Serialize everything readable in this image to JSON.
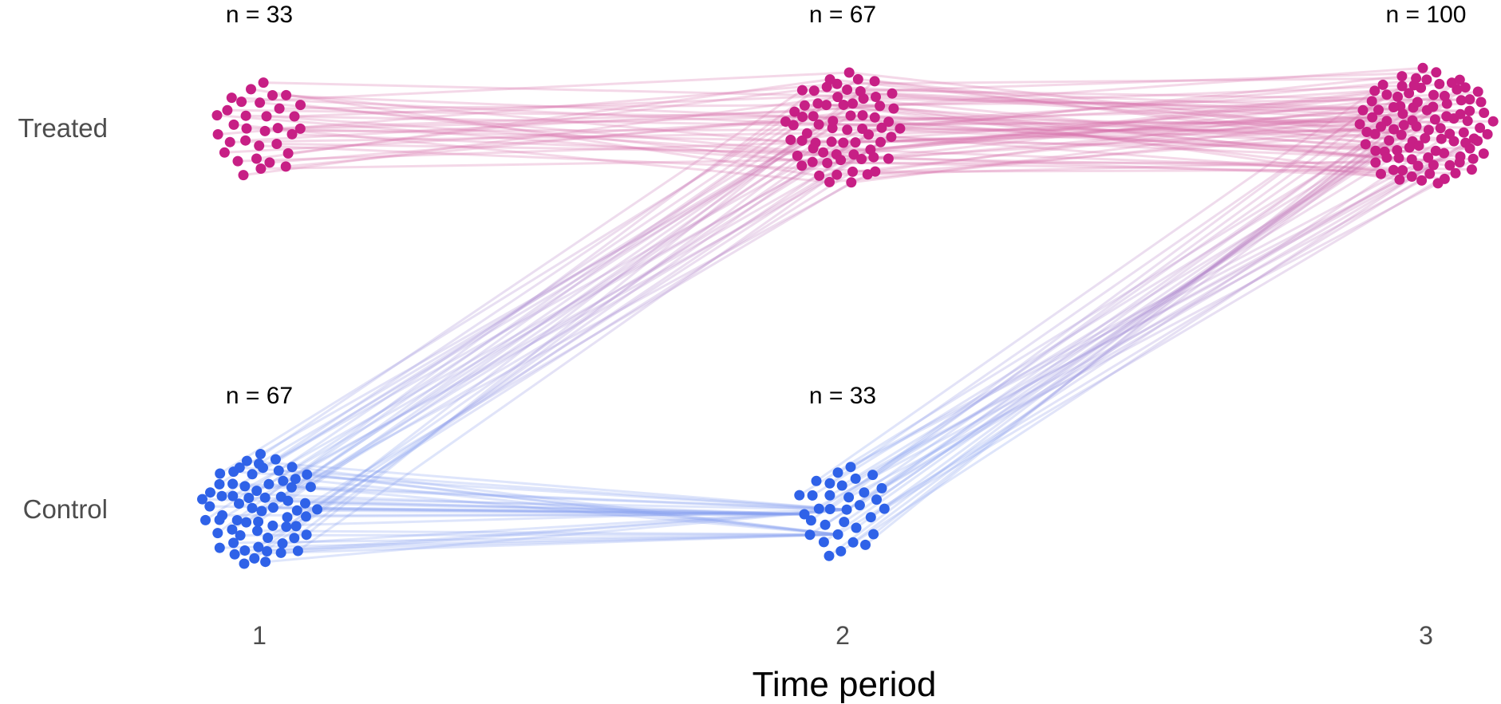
{
  "chart_data": {
    "type": "scatter",
    "xlabel": "Time period",
    "x_ticks": [
      "1",
      "2",
      "3"
    ],
    "groups": [
      {
        "name": "Treated",
        "color": "#c71f85"
      },
      {
        "name": "Control",
        "color": "#2f62e8"
      }
    ],
    "clusters": [
      {
        "group": "Treated",
        "period": 1,
        "n": 33,
        "label": "n = 33"
      },
      {
        "group": "Treated",
        "period": 2,
        "n": 67,
        "label": "n = 67"
      },
      {
        "group": "Treated",
        "period": 3,
        "n": 100,
        "label": "n = 100"
      },
      {
        "group": "Control",
        "period": 1,
        "n": 67,
        "label": "n = 67"
      },
      {
        "group": "Control",
        "period": 2,
        "n": 33,
        "label": "n = 33"
      }
    ],
    "transitions": [
      {
        "from": {
          "group": "Treated",
          "period": 1
        },
        "to": {
          "group": "Treated",
          "period": 2
        },
        "count": 33
      },
      {
        "from": {
          "group": "Control",
          "period": 1
        },
        "to": {
          "group": "Treated",
          "period": 2
        },
        "count": 34
      },
      {
        "from": {
          "group": "Control",
          "period": 1
        },
        "to": {
          "group": "Control",
          "period": 2
        },
        "count": 33
      },
      {
        "from": {
          "group": "Treated",
          "period": 2
        },
        "to": {
          "group": "Treated",
          "period": 3
        },
        "count": 67
      },
      {
        "from": {
          "group": "Control",
          "period": 2
        },
        "to": {
          "group": "Treated",
          "period": 3
        },
        "count": 33
      }
    ]
  }
}
